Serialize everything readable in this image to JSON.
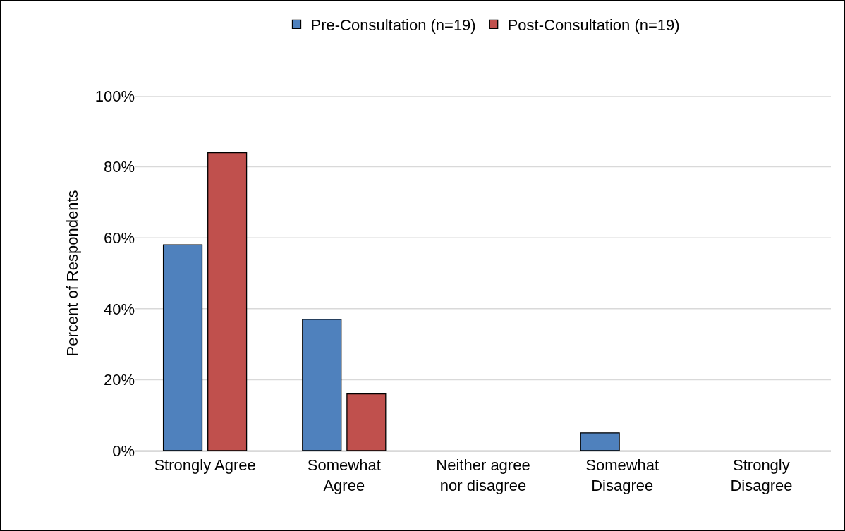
{
  "chart_data": {
    "type": "bar",
    "ylabel": "Percent of Respondents",
    "categories": [
      "Strongly Agree",
      "Somewhat\nAgree",
      "Neither agree\nnor disagree",
      "Somewhat\nDisagree",
      "Strongly\nDisagree"
    ],
    "series": [
      {
        "name": "Pre-Consultation (n=19)",
        "color": "#4f81bd",
        "values": [
          58,
          37,
          0,
          5,
          0
        ]
      },
      {
        "name": "Post-Consultation (n=19)",
        "color": "#c0504d",
        "values": [
          84,
          16,
          0,
          0,
          0
        ]
      }
    ],
    "ylim": [
      0,
      100
    ],
    "yticks": [
      {
        "value": 0,
        "label": "0%"
      },
      {
        "value": 20,
        "label": "20%"
      },
      {
        "value": 40,
        "label": "40%"
      },
      {
        "value": 60,
        "label": "60%"
      },
      {
        "value": 80,
        "label": "80%"
      },
      {
        "value": 100,
        "label": "100%"
      }
    ],
    "grid": "y",
    "legend": "top"
  }
}
